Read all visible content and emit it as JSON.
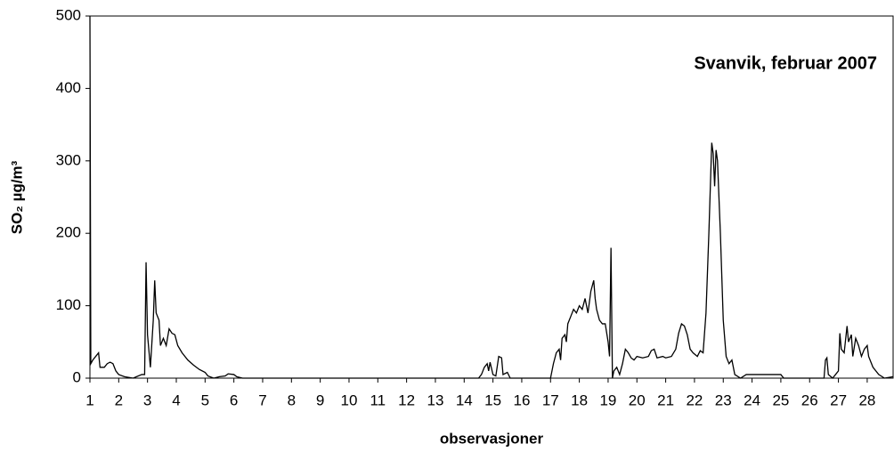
{
  "chart_data": {
    "type": "line",
    "title": "Svanvik, februar 2007",
    "y_label": "SO₂ µg/m³",
    "x_label": "observasjoner",
    "color": "#000000",
    "x": [
      1.0,
      1.03,
      1.1,
      1.2,
      1.3,
      1.35,
      1.5,
      1.6,
      1.7,
      1.8,
      1.9,
      2.0,
      2.2,
      2.5,
      2.8,
      2.9,
      2.95,
      3.0,
      3.1,
      3.2,
      3.25,
      3.3,
      3.4,
      3.45,
      3.55,
      3.65,
      3.75,
      3.85,
      3.95,
      4.05,
      4.2,
      4.4,
      4.6,
      4.8,
      5.0,
      5.1,
      5.3,
      5.5,
      5.7,
      5.8,
      6.0,
      6.1,
      6.3,
      14.5,
      14.6,
      14.7,
      14.8,
      14.85,
      14.9,
      15.0,
      15.1,
      15.2,
      15.3,
      15.35,
      15.5,
      15.6,
      17.0,
      17.1,
      17.2,
      17.3,
      17.35,
      17.4,
      17.5,
      17.55,
      17.6,
      17.7,
      17.8,
      17.9,
      18.0,
      18.1,
      18.2,
      18.25,
      18.3,
      18.4,
      18.5,
      18.55,
      18.6,
      18.7,
      18.8,
      18.9,
      19.0,
      19.05,
      19.1,
      19.15,
      19.2,
      19.3,
      19.4,
      19.5,
      19.6,
      19.7,
      19.8,
      19.9,
      20.0,
      20.2,
      20.4,
      20.5,
      20.6,
      20.7,
      20.9,
      21.0,
      21.2,
      21.35,
      21.45,
      21.55,
      21.65,
      21.75,
      21.85,
      21.95,
      22.1,
      22.2,
      22.3,
      22.4,
      22.5,
      22.6,
      22.65,
      22.7,
      22.75,
      22.8,
      22.9,
      23.0,
      23.1,
      23.2,
      23.3,
      23.4,
      23.6,
      23.8,
      24.0,
      24.5,
      25.0,
      25.1,
      26.5,
      26.55,
      26.6,
      26.65,
      26.8,
      26.9,
      27.0,
      27.05,
      27.1,
      27.2,
      27.3,
      27.35,
      27.45,
      27.5,
      27.6,
      27.7,
      27.8,
      27.9,
      28.0,
      28.05,
      28.2,
      28.4,
      28.6,
      28.9
    ],
    "values": [
      500,
      20,
      25,
      30,
      35,
      15,
      15,
      20,
      22,
      20,
      10,
      5,
      2,
      0,
      5,
      5,
      160,
      60,
      15,
      80,
      135,
      90,
      80,
      45,
      55,
      45,
      68,
      62,
      60,
      45,
      35,
      25,
      18,
      12,
      8,
      3,
      0,
      2,
      3,
      6,
      5,
      2,
      0,
      0,
      5,
      15,
      20,
      10,
      22,
      5,
      3,
      30,
      28,
      5,
      8,
      0,
      0,
      20,
      35,
      40,
      25,
      55,
      60,
      50,
      75,
      85,
      95,
      90,
      100,
      95,
      110,
      100,
      90,
      120,
      135,
      110,
      95,
      80,
      75,
      75,
      50,
      30,
      180,
      0,
      10,
      15,
      5,
      20,
      40,
      35,
      28,
      25,
      30,
      28,
      30,
      38,
      40,
      28,
      30,
      28,
      30,
      40,
      62,
      75,
      72,
      60,
      40,
      35,
      30,
      38,
      35,
      90,
      200,
      325,
      310,
      265,
      315,
      300,
      200,
      80,
      30,
      20,
      25,
      5,
      0,
      5,
      5,
      5,
      5,
      0,
      0,
      25,
      28,
      5,
      0,
      5,
      10,
      62,
      40,
      35,
      72,
      50,
      60,
      30,
      55,
      45,
      30,
      40,
      45,
      30,
      15,
      5,
      0,
      2
    ],
    "xlim": [
      1,
      28.9
    ],
    "xticks": [
      1,
      2,
      3,
      4,
      5,
      6,
      7,
      8,
      9,
      10,
      11,
      12,
      13,
      14,
      15,
      16,
      17,
      18,
      19,
      20,
      21,
      22,
      23,
      24,
      25,
      26,
      27,
      28
    ],
    "ylim": [
      0,
      500
    ],
    "yticks": [
      0,
      100,
      200,
      300,
      400,
      500
    ]
  }
}
